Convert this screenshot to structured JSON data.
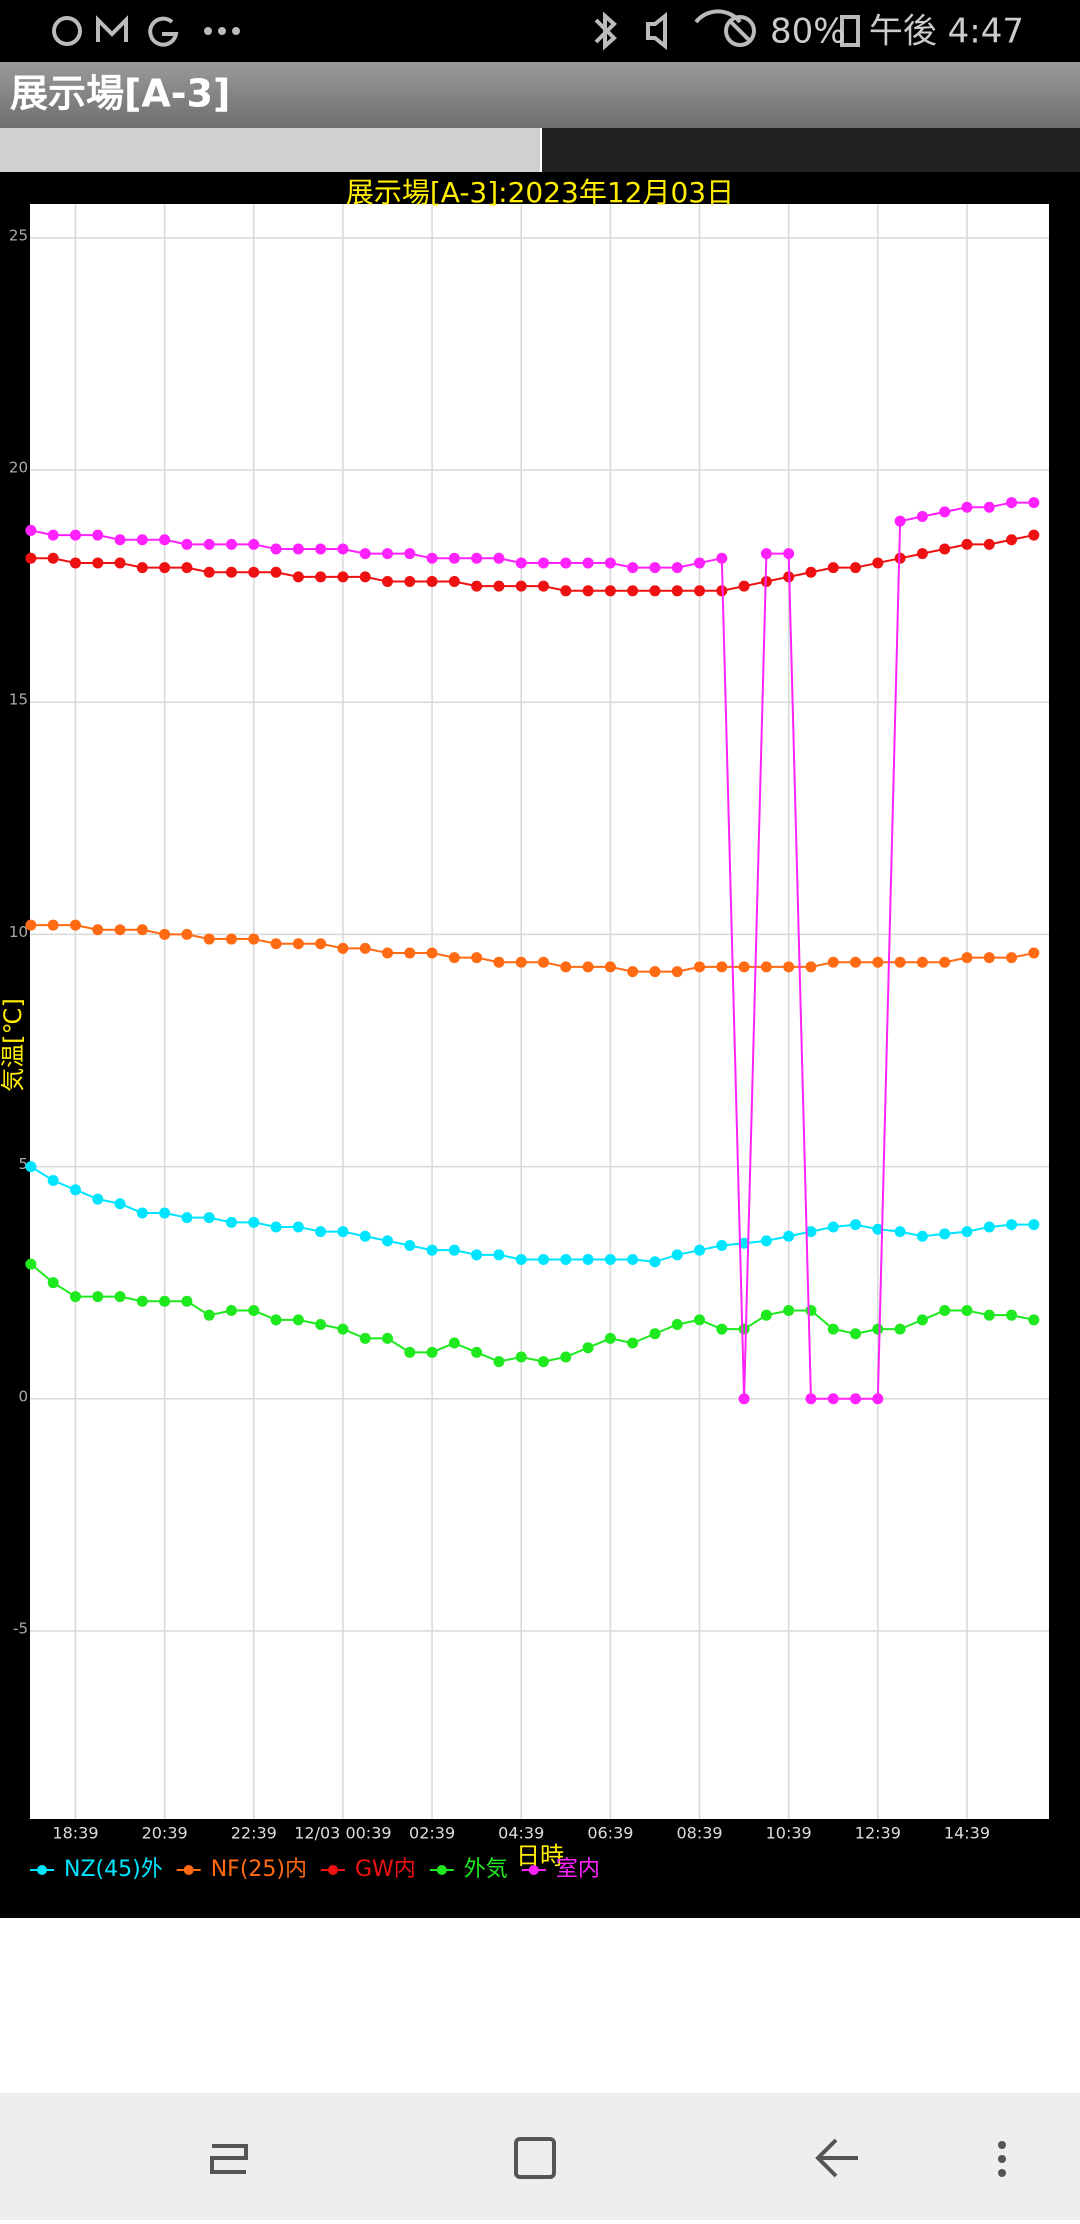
{
  "status_bar": {
    "battery": "80%",
    "time": "午後 4:47"
  },
  "app_bar": {
    "title": "展示場[A-3]"
  },
  "chart_data": {
    "type": "line",
    "title": "展示場[A-3]:2023年12月03日",
    "x_label": "日時",
    "y_label": "気温[℃]",
    "x": [
      17.65,
      18.15,
      18.65,
      19.15,
      19.65,
      20.15,
      20.65,
      21.15,
      21.65,
      22.15,
      22.65,
      23.15,
      23.65,
      24.15,
      24.65,
      25.15,
      25.65,
      26.15,
      26.65,
      27.15,
      27.65,
      28.15,
      28.65,
      29.15,
      29.65,
      30.15,
      30.65,
      31.15,
      31.65,
      32.15,
      32.65,
      33.15,
      33.65,
      34.15,
      34.65,
      35.15,
      35.65,
      36.15,
      36.65,
      37.15,
      37.65,
      38.15,
      38.65,
      39.15,
      39.65,
      40.15
    ],
    "xlim": [
      17.63,
      40.49
    ],
    "xticks": [
      {
        "value": 18.65,
        "label": "18:39"
      },
      {
        "value": 20.65,
        "label": "20:39"
      },
      {
        "value": 22.65,
        "label": "22:39"
      },
      {
        "value": 24.65,
        "label": "12/03 00:39"
      },
      {
        "value": 26.65,
        "label": "02:39"
      },
      {
        "value": 28.65,
        "label": "04:39"
      },
      {
        "value": 30.65,
        "label": "06:39"
      },
      {
        "value": 32.65,
        "label": "08:39"
      },
      {
        "value": 34.65,
        "label": "10:39"
      },
      {
        "value": 36.65,
        "label": "12:39"
      },
      {
        "value": 38.65,
        "label": "14:39"
      }
    ],
    "ylim": [
      -9.05,
      25.73
    ],
    "yticks": [
      -5,
      0,
      5,
      10,
      15,
      20,
      25
    ],
    "grid": true,
    "series": [
      {
        "name": "NZ(45)外",
        "color": "#00e5ff",
        "values": [
          5.0,
          4.7,
          4.5,
          4.3,
          4.2,
          4.0,
          4.0,
          3.9,
          3.9,
          3.8,
          3.8,
          3.7,
          3.7,
          3.6,
          3.6,
          3.5,
          3.4,
          3.3,
          3.2,
          3.2,
          3.1,
          3.1,
          3.0,
          3.0,
          3.0,
          3.0,
          3.0,
          3.0,
          2.95,
          3.1,
          3.2,
          3.3,
          3.35,
          3.4,
          3.5,
          3.6,
          3.7,
          3.75,
          3.65,
          3.6,
          3.5,
          3.55,
          3.6,
          3.7,
          3.75,
          3.75
        ]
      },
      {
        "name": "NF(25)内",
        "color": "#ff6a13",
        "values": [
          10.2,
          10.2,
          10.2,
          10.1,
          10.1,
          10.1,
          10.0,
          10.0,
          9.9,
          9.9,
          9.9,
          9.8,
          9.8,
          9.8,
          9.7,
          9.7,
          9.6,
          9.6,
          9.6,
          9.5,
          9.5,
          9.4,
          9.4,
          9.4,
          9.3,
          9.3,
          9.3,
          9.2,
          9.2,
          9.2,
          9.3,
          9.3,
          9.3,
          9.3,
          9.3,
          9.3,
          9.4,
          9.4,
          9.4,
          9.4,
          9.4,
          9.4,
          9.5,
          9.5,
          9.5,
          9.6
        ]
      },
      {
        "name": "GW内",
        "color": "#ee1111",
        "values": [
          18.1,
          18.1,
          18.0,
          18.0,
          18.0,
          17.9,
          17.9,
          17.9,
          17.8,
          17.8,
          17.8,
          17.8,
          17.7,
          17.7,
          17.7,
          17.7,
          17.6,
          17.6,
          17.6,
          17.6,
          17.5,
          17.5,
          17.5,
          17.5,
          17.4,
          17.4,
          17.4,
          17.4,
          17.4,
          17.4,
          17.4,
          17.4,
          17.5,
          17.6,
          17.7,
          17.8,
          17.9,
          17.9,
          18.0,
          18.1,
          18.2,
          18.3,
          18.4,
          18.4,
          18.5,
          18.6
        ]
      },
      {
        "name": "外気",
        "color": "#1ee81e",
        "values": [
          2.9,
          2.5,
          2.2,
          2.2,
          2.2,
          2.1,
          2.1,
          2.1,
          1.8,
          1.9,
          1.9,
          1.7,
          1.7,
          1.6,
          1.5,
          1.3,
          1.3,
          1.0,
          1.0,
          1.2,
          1.0,
          0.8,
          0.9,
          0.8,
          0.9,
          1.1,
          1.3,
          1.2,
          1.4,
          1.6,
          1.7,
          1.5,
          1.5,
          1.8,
          1.9,
          1.9,
          1.5,
          1.4,
          1.5,
          1.5,
          1.7,
          1.9,
          1.9,
          1.8,
          1.8,
          1.7
        ]
      },
      {
        "name": "室内",
        "color": "#ff22ff",
        "values": [
          18.7,
          18.6,
          18.6,
          18.6,
          18.5,
          18.5,
          18.5,
          18.4,
          18.4,
          18.4,
          18.4,
          18.3,
          18.3,
          18.3,
          18.3,
          18.2,
          18.2,
          18.2,
          18.1,
          18.1,
          18.1,
          18.1,
          18.0,
          18.0,
          18.0,
          18.0,
          18.0,
          17.9,
          17.9,
          17.9,
          18.0,
          18.1,
          0,
          18.2,
          18.2,
          0,
          0,
          0,
          0,
          18.9,
          19.0,
          19.1,
          19.2,
          19.2,
          19.3,
          19.3
        ]
      }
    ]
  }
}
